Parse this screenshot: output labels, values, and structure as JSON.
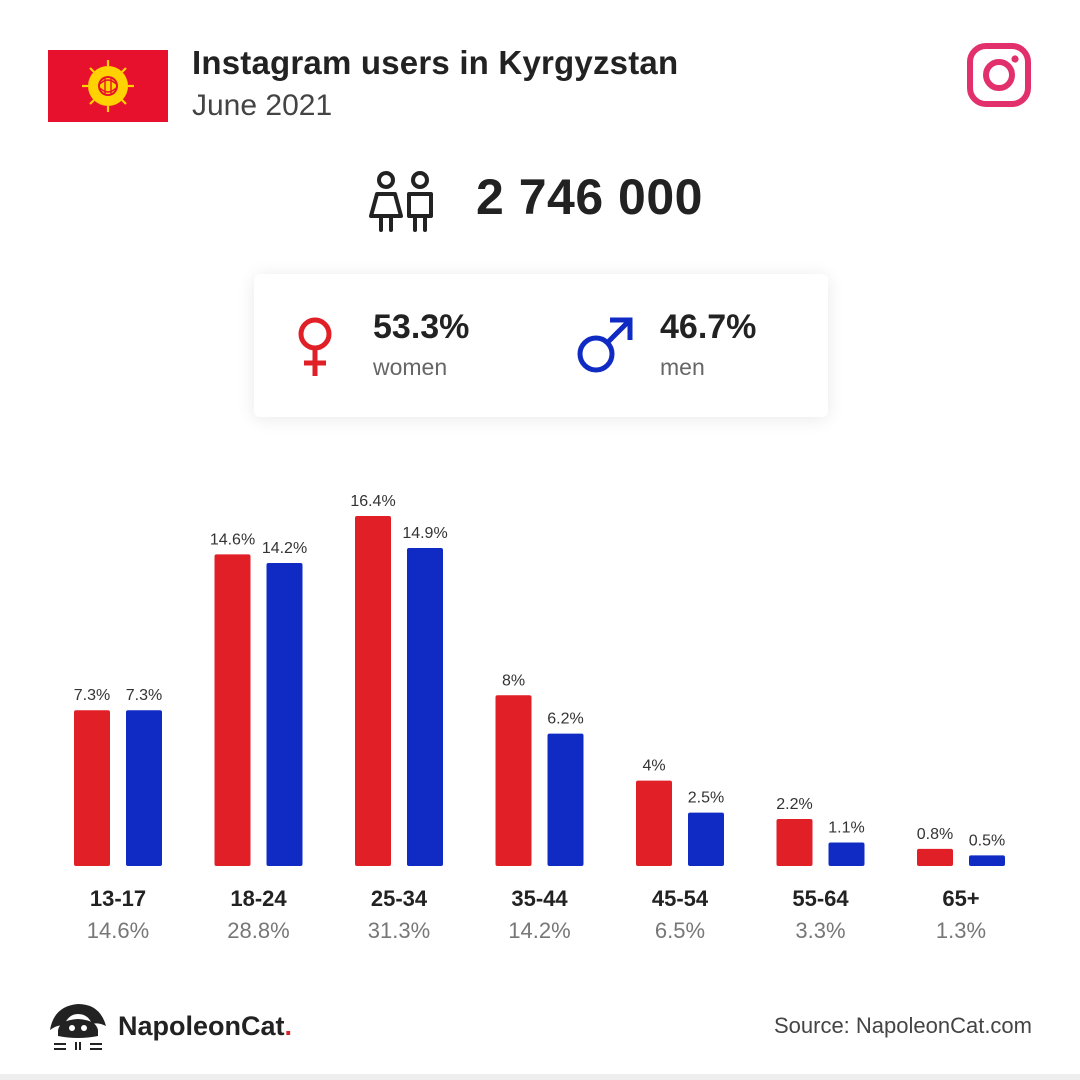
{
  "header": {
    "title": "Instagram users in Kyrgyzstan",
    "subtitle": "June 2021"
  },
  "total": {
    "value": "2 746 000"
  },
  "gender": {
    "women": {
      "pct": "53.3%",
      "label": "women"
    },
    "men": {
      "pct": "46.7%",
      "label": "men"
    }
  },
  "colors": {
    "women": "#e01f27",
    "men": "#0f2bc4",
    "instagram": "#e1306c",
    "flag_red": "#e8112d",
    "flag_sun": "#ffd200"
  },
  "icons": {
    "flag": "kyrgyzstan-flag-icon",
    "brand": "instagram-icon",
    "users": "users-icon",
    "female": "female-icon",
    "male": "male-icon",
    "logo": "napoleoncat-logo-icon"
  },
  "chart_data": {
    "type": "bar",
    "categories": [
      "13-17",
      "18-24",
      "25-34",
      "35-44",
      "45-54",
      "55-64",
      "65+"
    ],
    "series": [
      {
        "name": "women",
        "values": [
          7.3,
          14.6,
          16.4,
          8,
          4,
          2.2,
          0.8
        ],
        "labels": [
          "7.3%",
          "14.6%",
          "16.4%",
          "8%",
          "4%",
          "2.2%",
          "0.8%"
        ]
      },
      {
        "name": "men",
        "values": [
          7.3,
          14.2,
          14.9,
          6.2,
          2.5,
          1.1,
          0.5
        ],
        "labels": [
          "7.3%",
          "14.2%",
          "14.9%",
          "6.2%",
          "2.5%",
          "1.1%",
          "0.5%"
        ]
      }
    ],
    "totals": [
      "14.6%",
      "28.8%",
      "31.3%",
      "14.2%",
      "6.5%",
      "3.3%",
      "1.3%"
    ],
    "ylim": [
      0,
      16.4
    ],
    "grid": false
  },
  "footer": {
    "logo_text": "NapoleonCat",
    "logo_dot": ".",
    "source": "Source: NapoleonCat.com"
  }
}
